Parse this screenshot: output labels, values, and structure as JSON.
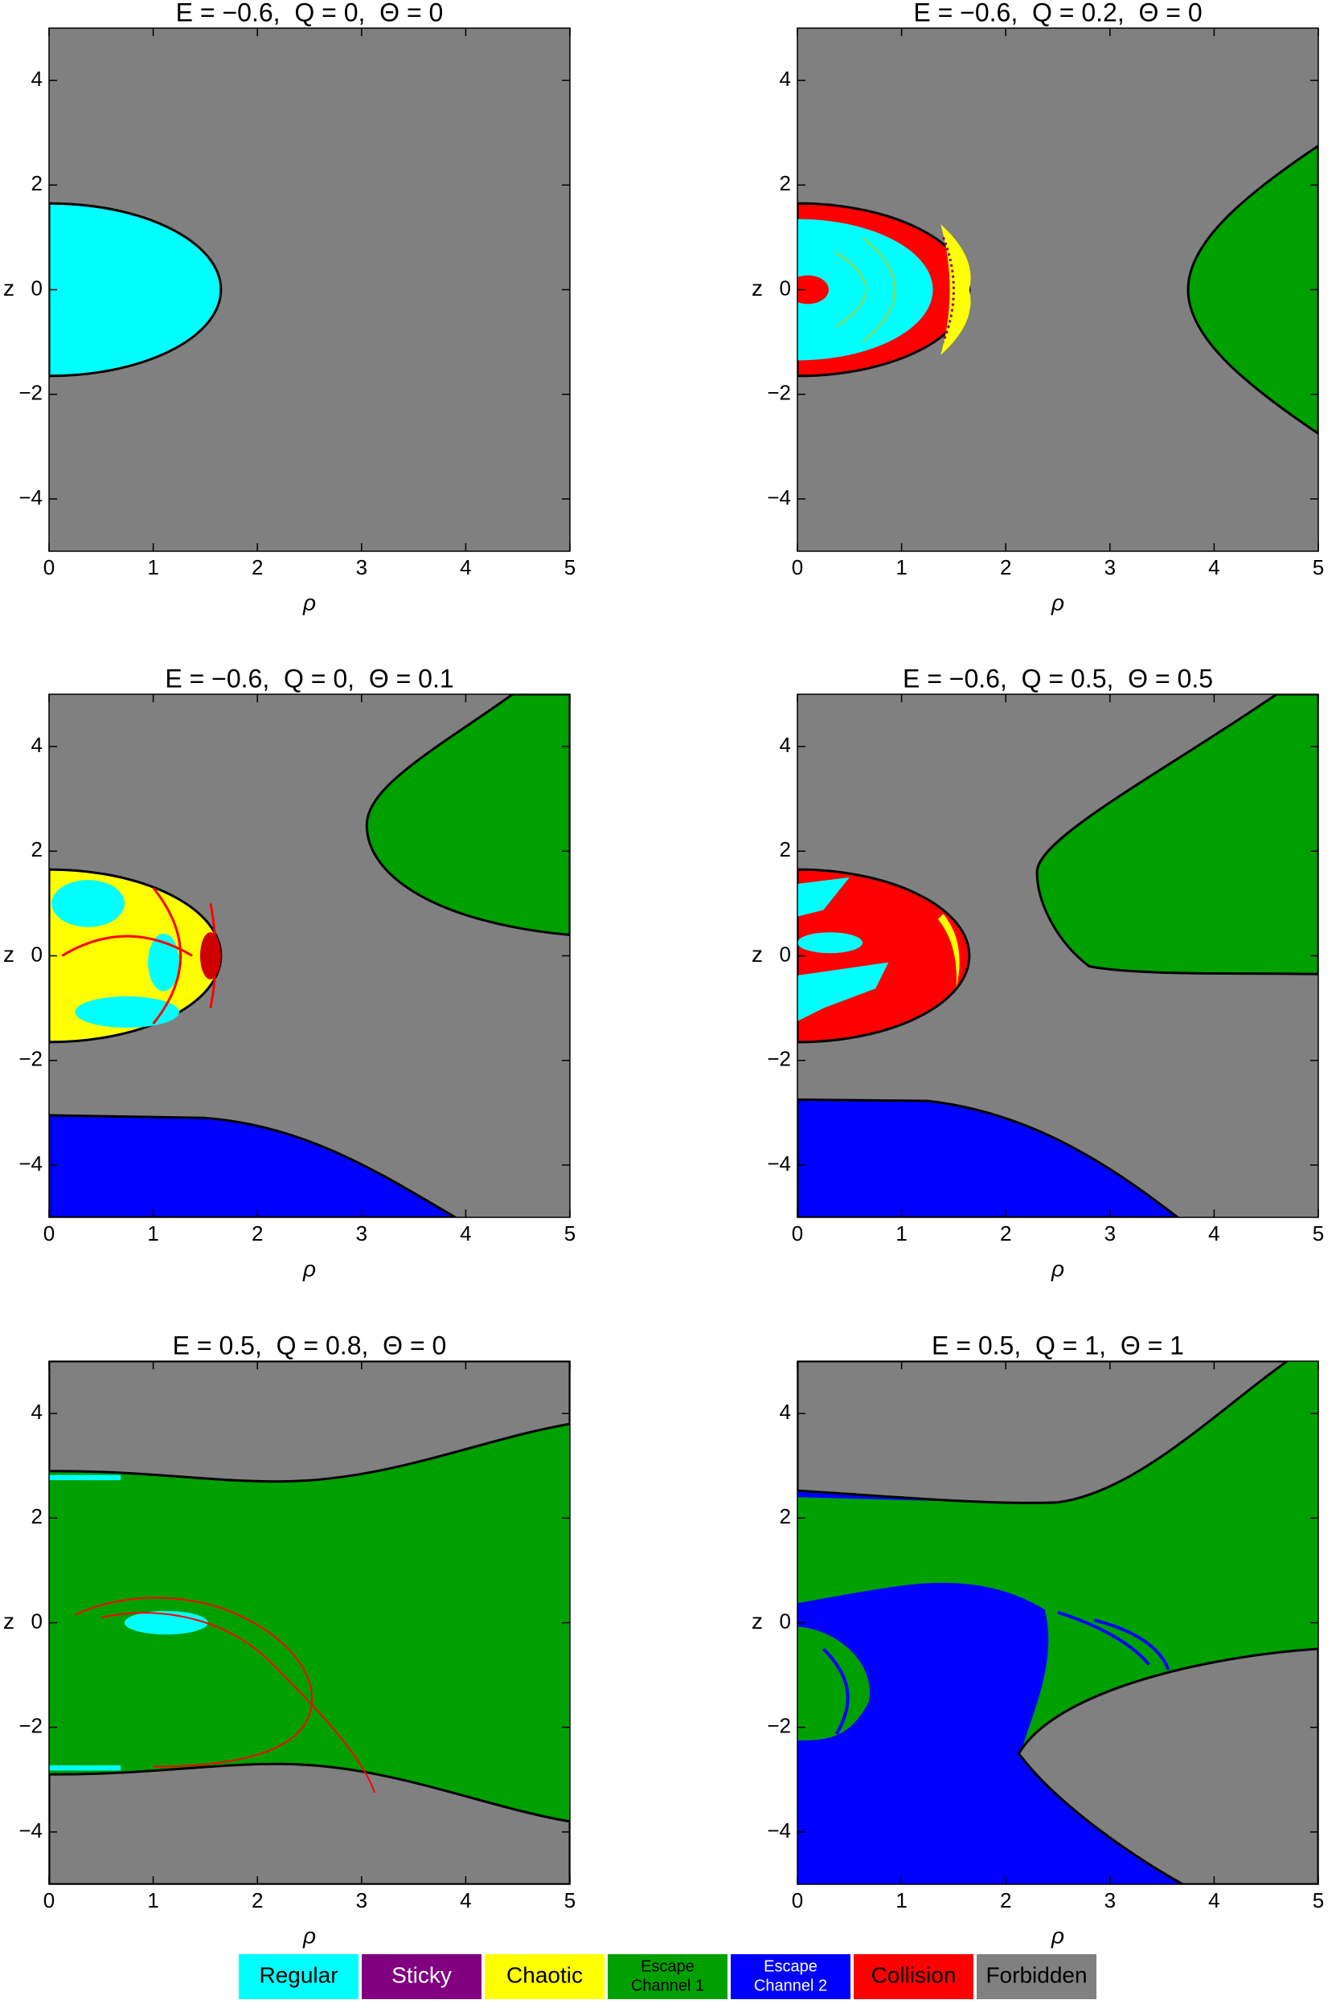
{
  "chart_data": [
    {
      "type": "basin-map",
      "title": "E = −0.6,  Q = 0,  Θ = 0",
      "xlabel": "ρ",
      "ylabel": "z",
      "xlim": [
        0,
        5
      ],
      "ylim": [
        -5,
        5
      ],
      "xticks": [
        0,
        1,
        2,
        3,
        4,
        5
      ],
      "yticks": [
        {
          "value": -4,
          "label": "−4"
        },
        {
          "value": -2,
          "label": "−2"
        },
        0,
        2,
        4
      ]
    },
    {
      "type": "basin-map",
      "title": "E = −0.6,  Q = 0.2,  Θ = 0",
      "xlabel": "ρ",
      "ylabel": "z",
      "xlim": [
        0,
        5
      ],
      "ylim": [
        -5,
        5
      ],
      "xticks": [
        0,
        1,
        2,
        3,
        4,
        5
      ],
      "yticks": [
        {
          "value": -4,
          "label": "−4"
        },
        {
          "value": -2,
          "label": "−2"
        },
        0,
        2,
        4
      ]
    },
    {
      "type": "basin-map",
      "title": "E = −0.6,  Q = 0,  Θ = 0.1",
      "xlabel": "ρ",
      "ylabel": "z",
      "xlim": [
        0,
        5
      ],
      "ylim": [
        -5,
        5
      ],
      "xticks": [
        0,
        1,
        2,
        3,
        4,
        5
      ],
      "yticks": [
        {
          "value": -4,
          "label": "−4"
        },
        {
          "value": -2,
          "label": "−2"
        },
        0,
        2,
        4
      ]
    },
    {
      "type": "basin-map",
      "title": "E = −0.6,  Q = 0.5,  Θ = 0.5",
      "xlabel": "ρ",
      "ylabel": "z",
      "xlim": [
        0,
        5
      ],
      "ylim": [
        -5,
        5
      ],
      "xticks": [
        0,
        1,
        2,
        3,
        4,
        5
      ],
      "yticks": [
        {
          "value": -4,
          "label": "−4"
        },
        {
          "value": -2,
          "label": "−2"
        },
        0,
        2,
        4
      ]
    },
    {
      "type": "basin-map",
      "title": "E = 0.5,  Q = 0.8,  Θ = 0",
      "xlabel": "ρ",
      "ylabel": "z",
      "xlim": [
        0,
        5
      ],
      "ylim": [
        -5,
        5
      ],
      "xticks": [
        0,
        1,
        2,
        3,
        4,
        5
      ],
      "yticks": [
        {
          "value": -4,
          "label": "−4"
        },
        {
          "value": -2,
          "label": "−2"
        },
        0,
        2,
        4
      ]
    },
    {
      "type": "basin-map",
      "title": "E = 0.5,  Q = 1,  Θ = 1",
      "xlabel": "ρ",
      "ylabel": "z",
      "xlim": [
        0,
        5
      ],
      "ylim": [
        -5,
        5
      ],
      "xticks": [
        0,
        1,
        2,
        3,
        4,
        5
      ],
      "yticks": [
        {
          "value": -4,
          "label": "−4"
        },
        {
          "value": -2,
          "label": "−2"
        },
        0,
        2,
        4
      ]
    }
  ],
  "legend": [
    {
      "lines": [
        "Regular"
      ],
      "color": "#00ffff",
      "text_color": "#000000"
    },
    {
      "lines": [
        "Sticky"
      ],
      "color": "#800080",
      "text_color": "#ffffff"
    },
    {
      "lines": [
        "Chaotic"
      ],
      "color": "#ffff00",
      "text_color": "#000000"
    },
    {
      "lines": [
        "Escape",
        "Channel 1"
      ],
      "color": "#00a000",
      "text_color": "#000000"
    },
    {
      "lines": [
        "Escape",
        "Channel 2"
      ],
      "color": "#0000ff",
      "text_color": "#ffffff"
    },
    {
      "lines": [
        "Collision"
      ],
      "color": "#ff0000",
      "text_color": "#000000"
    },
    {
      "lines": [
        "Forbidden"
      ],
      "color": "#808080",
      "text_color": "#000000"
    }
  ]
}
